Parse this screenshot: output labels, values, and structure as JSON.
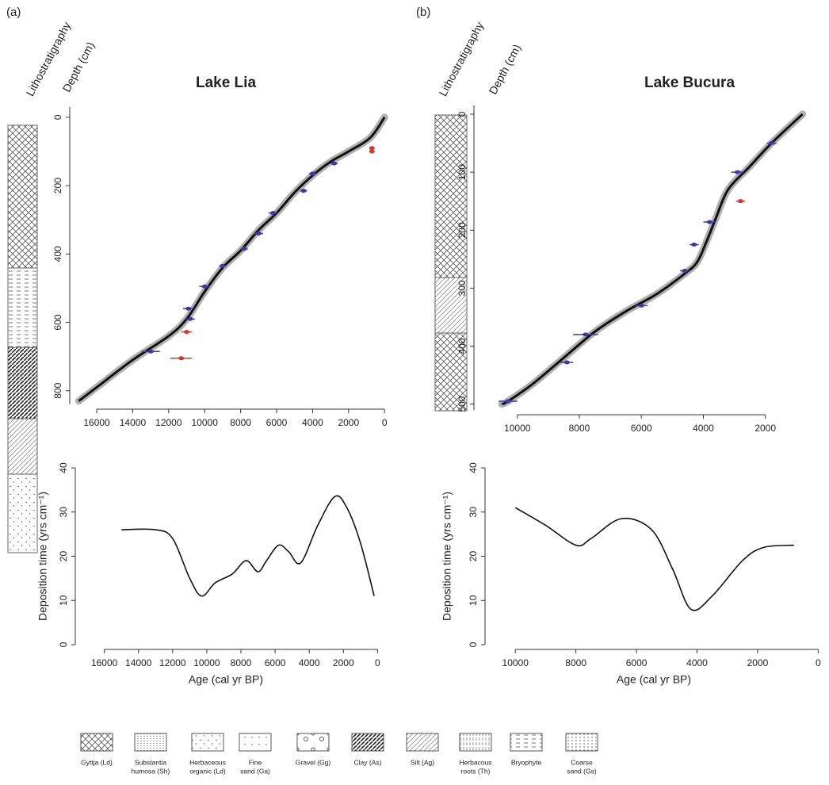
{
  "chart_data": [
    {
      "type": "line",
      "panel_label": "(a)",
      "title": "Lake Lia",
      "strat_label": "Lithostratigraphy",
      "ylabel": "Depth (cm)",
      "xlim": [
        17500,
        -300
      ],
      "xticks": [
        16000,
        14000,
        12000,
        10000,
        8000,
        6000,
        4000,
        2000,
        0
      ],
      "ylim": [
        840,
        -30
      ],
      "yticks": [
        0,
        200,
        400,
        600,
        800
      ],
      "series": [
        {
          "color": "#111111",
          "band_color": "#b0b0b0",
          "x": [
            0,
            800,
            2000,
            3000,
            4000,
            5000,
            6000,
            7000,
            8000,
            9000,
            10000,
            11000,
            12000,
            14000,
            16000,
            17000
          ],
          "values": [
            0,
            60,
            100,
            130,
            170,
            220,
            280,
            330,
            390,
            440,
            510,
            590,
            640,
            710,
            790,
            830
          ]
        }
      ],
      "dates": [
        {
          "color": "#3a3aa8",
          "x": [
            13000,
            10900,
            10800,
            10000,
            9000,
            7800,
            7000,
            6200,
            4500,
            4000,
            2800
          ],
          "values": [
            685,
            560,
            590,
            495,
            435,
            385,
            340,
            280,
            215,
            165,
            135
          ],
          "errors": [
            500,
            300,
            250,
            300,
            200,
            200,
            250,
            250,
            200,
            200,
            200
          ]
        },
        {
          "color": "#d23a2a",
          "x": [
            11300,
            11000,
            700,
            700
          ],
          "values": [
            705,
            628,
            90,
            100
          ],
          "errors": [
            600,
            300,
            100,
            100
          ]
        }
      ]
    },
    {
      "type": "line",
      "panel_label": "(b)",
      "title": "Lake Bucura",
      "strat_label": "Lithostratigraphy",
      "ylabel": "Depth (cm)",
      "xlim": [
        11400,
        100
      ],
      "xticks": [
        10000,
        8000,
        6000,
        4000,
        2000
      ],
      "ylim": [
        510,
        -15
      ],
      "yticks": [
        0,
        100,
        200,
        300,
        400,
        500
      ],
      "series": [
        {
          "color": "#111111",
          "band_color": "#b0b0b0",
          "x": [
            800,
            1800,
            2500,
            3200,
            3600,
            3900,
            4200,
            4600,
            5500,
            6500,
            7500,
            8500,
            9500,
            10300,
            10500
          ],
          "values": [
            0,
            50,
            90,
            130,
            180,
            220,
            255,
            275,
            310,
            340,
            375,
            420,
            465,
            495,
            500
          ]
        }
      ],
      "dates": [
        {
          "color": "#3a3aa8",
          "x": [
            10300,
            8400,
            7800,
            6000,
            4600,
            4300,
            3800,
            2900,
            1800
          ],
          "values": [
            495,
            428,
            380,
            330,
            270,
            225,
            186,
            100,
            50
          ],
          "errors": [
            300,
            200,
            400,
            200,
            150,
            150,
            200,
            200,
            150
          ]
        },
        {
          "color": "#d23a2a",
          "x": [
            2800
          ],
          "values": [
            150
          ],
          "errors": [
            150
          ]
        }
      ]
    },
    {
      "type": "line",
      "xlabel": "Age (cal yr BP)",
      "ylabel": "Deposition time (yrs cm⁻¹)",
      "xlim": [
        17700,
        -400
      ],
      "xticks": [
        16000,
        14000,
        12000,
        10000,
        8000,
        6000,
        4000,
        2000,
        0
      ],
      "ylim": [
        0,
        40
      ],
      "yticks": [
        0,
        10,
        20,
        30,
        40
      ],
      "series": [
        {
          "color": "#111111",
          "x": [
            15000,
            13000,
            12000,
            11000,
            10300,
            9500,
            8500,
            7700,
            7000,
            6500,
            5800,
            5200,
            4500,
            3500,
            2500,
            1800,
            1000,
            200
          ],
          "values": [
            26,
            26,
            24,
            15,
            11,
            14,
            16,
            19,
            16.5,
            19,
            22.5,
            21,
            18.5,
            27,
            33.5,
            31,
            23,
            11
          ]
        }
      ]
    },
    {
      "type": "line",
      "xlabel": "Age (cal yr BP)",
      "ylabel": "Deposition time (yrs cm⁻¹)",
      "xlim": [
        11000,
        -200
      ],
      "xticks": [
        10000,
        8000,
        6000,
        4000,
        2000,
        0
      ],
      "ylim": [
        0,
        40
      ],
      "yticks": [
        0,
        10,
        20,
        30,
        40
      ],
      "series": [
        {
          "color": "#111111",
          "x": [
            10000,
            9000,
            8000,
            7500,
            6500,
            5500,
            4800,
            4200,
            3500,
            2500,
            1800,
            800
          ],
          "values": [
            31,
            27,
            22.5,
            24,
            28.5,
            26,
            17,
            8,
            11,
            19,
            22,
            22.5
          ]
        }
      ]
    }
  ],
  "legend": [
    [
      "Gyttja (Ld)"
    ],
    [
      "Substantia",
      "humosa (Sh)"
    ],
    [
      "Herbaceous",
      "organic (Ld)"
    ],
    [
      "Fine",
      "sand (Ga)"
    ],
    [
      "Gravel (Gg)"
    ],
    [
      "Clay (As)"
    ],
    [
      "Silt (Ag)"
    ],
    [
      "Herbacous",
      "roots (Th)"
    ],
    [
      "Bryophyte"
    ],
    [
      "Coarse",
      "sand (Gs)"
    ]
  ]
}
